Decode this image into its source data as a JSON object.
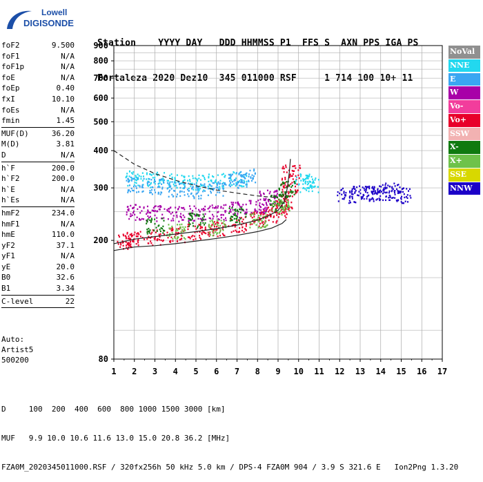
{
  "logo": {
    "line1": "Lowell",
    "line2": "DIGISONDE"
  },
  "header": {
    "labels": "Station    YYYY DAY   DDD HHMMSS P1  FFS S  AXN PPS IGA PS",
    "values": "Fortaleza 2020 Dez10  345 011000 RSF     1 714 100 10+ 11"
  },
  "params": [
    {
      "name": "foF2",
      "value": "9.500"
    },
    {
      "name": "foF1",
      "value": "N/A"
    },
    {
      "name": "foF1p",
      "value": "N/A"
    },
    {
      "name": "foE",
      "value": "N/A"
    },
    {
      "name": "foEp",
      "value": "0.40"
    },
    {
      "name": "fxI",
      "value": "10.10"
    },
    {
      "name": "foEs",
      "value": "N/A"
    },
    {
      "name": "fmin",
      "value": "1.45"
    },
    {
      "sep": true
    },
    {
      "name": "MUF(D)",
      "value": "36.20"
    },
    {
      "name": "M(D)",
      "value": "3.81"
    },
    {
      "name": "D",
      "value": "N/A"
    },
    {
      "sep": true
    },
    {
      "name": "h`F",
      "value": "200.0"
    },
    {
      "name": "h`F2",
      "value": "200.0"
    },
    {
      "name": "h`E",
      "value": "N/A"
    },
    {
      "name": "h`Es",
      "value": "N/A"
    },
    {
      "sep": true
    },
    {
      "name": "hmF2",
      "value": "234.0"
    },
    {
      "name": "hmF1",
      "value": "N/A"
    },
    {
      "name": "hmE",
      "value": "110.0"
    },
    {
      "name": "yF2",
      "value": "37.1"
    },
    {
      "name": "yF1",
      "value": "N/A"
    },
    {
      "name": "yE",
      "value": "20.0"
    },
    {
      "name": "B0",
      "value": "32.6"
    },
    {
      "name": "B1",
      "value": "3.34"
    },
    {
      "sep": true
    },
    {
      "name": "C-level",
      "value": "22"
    },
    {
      "sep": true
    }
  ],
  "auto": {
    "line1": "Auto:",
    "line2": "Artist5",
    "line3": "500200"
  },
  "legend": [
    {
      "label": "NoVal",
      "color": "#909090"
    },
    {
      "label": "NNE",
      "color": "#22d8ef"
    },
    {
      "label": "E",
      "color": "#3aa6f2"
    },
    {
      "label": "W",
      "color": "#a800a8"
    },
    {
      "label": "Vo-",
      "color": "#f23d9c"
    },
    {
      "label": "Vo+",
      "color": "#e8002a"
    },
    {
      "label": "SSW",
      "color": "#f2b2b2"
    },
    {
      "label": "X-",
      "color": "#0f7a0f"
    },
    {
      "label": "X+",
      "color": "#6ec24a"
    },
    {
      "label": "SSE",
      "color": "#d8d800"
    },
    {
      "label": "NNW",
      "color": "#1c00c8"
    }
  ],
  "footer": {
    "line1": "D     100  200  400  600  800 1000 1500 3000 [km]",
    "line2": "MUF   9.9 10.0 10.6 11.6 13.0 15.0 20.8 36.2 [MHz]",
    "line3": "FZA0M_2020345011000.RSF / 320fx256h 50 kHz 5.0 km / DPS-4 FZA0M 904 / 3.9 S 321.6 E   Ion2Png 1.3.20"
  },
  "chart_data": {
    "type": "scatter",
    "title": "",
    "xlabel": "",
    "ylabel": "",
    "xlim": [
      1,
      17
    ],
    "ylim": [
      80,
      900
    ],
    "yscale": "log",
    "xticks": [
      1,
      2,
      3,
      4,
      5,
      6,
      7,
      8,
      9,
      10,
      11,
      12,
      13,
      14,
      15,
      16,
      17
    ],
    "yticks": [
      80,
      200,
      300,
      400,
      500,
      600,
      700,
      800,
      900
    ],
    "grid": true,
    "legend_position": "right",
    "series": [
      {
        "name": "Vo+",
        "color": "#e8002a",
        "points": [
          [
            1.5,
            200
          ],
          [
            2,
            203
          ],
          [
            3,
            206
          ],
          [
            4,
            210
          ],
          [
            5,
            215
          ],
          [
            6,
            220
          ],
          [
            7,
            228
          ],
          [
            8,
            238
          ],
          [
            8.5,
            245
          ],
          [
            9,
            255
          ],
          [
            9.3,
            270
          ],
          [
            9.5,
            300
          ],
          [
            9.6,
            340
          ]
        ]
      },
      {
        "name": "NNE",
        "color": "#22d8ef",
        "points": [
          [
            2,
            325
          ],
          [
            3,
            322
          ],
          [
            4,
            318
          ],
          [
            5,
            315
          ],
          [
            6,
            318
          ],
          [
            7,
            322
          ],
          [
            10.2,
            320
          ],
          [
            10.5,
            310
          ]
        ]
      },
      {
        "name": "E",
        "color": "#3aa6f2",
        "points": [
          [
            2,
            310
          ],
          [
            3,
            305
          ],
          [
            4,
            300
          ],
          [
            5,
            295
          ],
          [
            6,
            300
          ],
          [
            7,
            320
          ],
          [
            7.5,
            330
          ]
        ]
      },
      {
        "name": "W",
        "color": "#a800a8",
        "points": [
          [
            2,
            250
          ],
          [
            3,
            248
          ],
          [
            4,
            246
          ],
          [
            5,
            248
          ],
          [
            6,
            250
          ],
          [
            7,
            255
          ],
          [
            8,
            262
          ],
          [
            8.5,
            280
          ]
        ]
      },
      {
        "name": "NNW",
        "color": "#1c00c8",
        "points": [
          [
            12.3,
            285
          ],
          [
            13,
            290
          ],
          [
            13.5,
            288
          ],
          [
            14,
            292
          ],
          [
            14.5,
            295
          ],
          [
            15,
            285
          ]
        ]
      },
      {
        "name": "X-",
        "color": "#0f7a0f",
        "points": [
          [
            3,
            225
          ],
          [
            5,
            235
          ],
          [
            7,
            245
          ],
          [
            9,
            270
          ],
          [
            9.4,
            300
          ]
        ]
      },
      {
        "name": "X+",
        "color": "#6ec24a",
        "points": [
          [
            4,
            215
          ],
          [
            6,
            222
          ],
          [
            8,
            235
          ],
          [
            9.1,
            260
          ]
        ]
      }
    ],
    "curves": [
      {
        "style": "solid",
        "points": [
          [
            1,
            195
          ],
          [
            2,
            202
          ],
          [
            3,
            206
          ],
          [
            4,
            210
          ],
          [
            5,
            214
          ],
          [
            6,
            219
          ],
          [
            7,
            225
          ],
          [
            8,
            234
          ],
          [
            8.5,
            241
          ],
          [
            9,
            252
          ],
          [
            9.3,
            270
          ],
          [
            9.45,
            300
          ],
          [
            9.55,
            340
          ],
          [
            9.6,
            375
          ]
        ]
      },
      {
        "style": "solid",
        "points": [
          [
            1,
            185
          ],
          [
            2,
            190
          ],
          [
            3,
            192
          ],
          [
            4,
            195
          ],
          [
            5,
            199
          ],
          [
            6,
            203
          ],
          [
            7,
            208
          ],
          [
            8,
            214
          ],
          [
            8.7,
            220
          ],
          [
            9.2,
            228
          ],
          [
            9.4,
            235
          ]
        ]
      },
      {
        "style": "dashed",
        "points": [
          [
            1,
            400
          ],
          [
            2,
            360
          ],
          [
            3,
            335
          ],
          [
            4,
            318
          ],
          [
            5,
            305
          ],
          [
            6,
            295
          ],
          [
            7,
            288
          ],
          [
            8,
            282
          ],
          [
            9,
            278
          ]
        ]
      }
    ]
  }
}
